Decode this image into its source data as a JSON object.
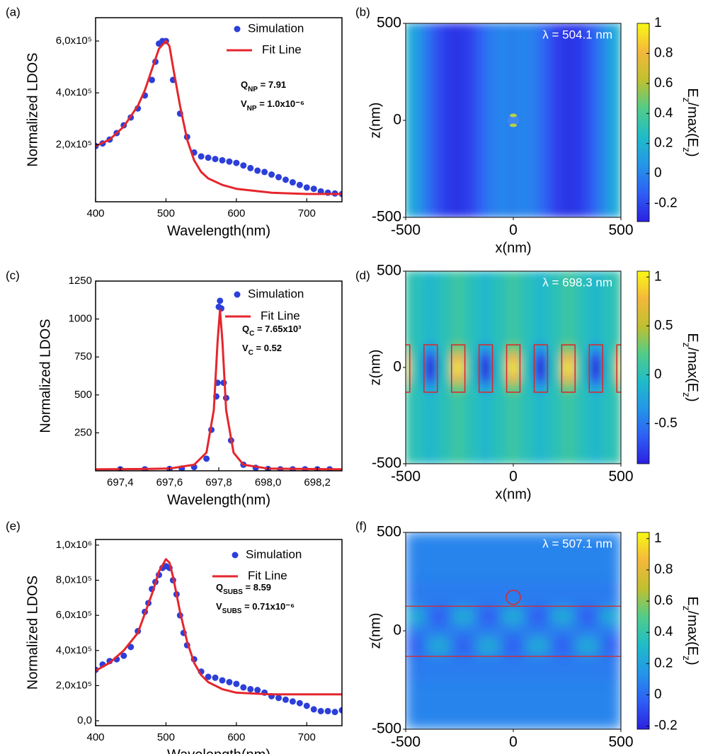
{
  "chart_data": [
    {
      "type": "scatter-line",
      "panel": "(a)",
      "x_label": "Wavelength(nm)",
      "y_label": "Normalized LDOS",
      "xlim": [
        400,
        750
      ],
      "xticks": [
        400,
        500,
        600,
        700
      ],
      "ylim": [
        -20000,
        690000
      ],
      "yticks": [
        {
          "value": 200000,
          "label": "2,0x10⁵"
        },
        {
          "value": 400000,
          "label": "4,0x10⁵"
        },
        {
          "value": 600000,
          "label": "6,0x10⁵"
        }
      ],
      "series": [
        {
          "name": "Simulation",
          "color": "#2c3fd9",
          "marker": "circle",
          "x": [
            400,
            410,
            420,
            430,
            440,
            450,
            460,
            470,
            480,
            485,
            490,
            495,
            500,
            510,
            520,
            530,
            540,
            550,
            560,
            570,
            580,
            590,
            600,
            610,
            620,
            630,
            640,
            650,
            660,
            670,
            680,
            690,
            700,
            710,
            720,
            730,
            740,
            750
          ],
          "values": [
            195000,
            205000,
            220000,
            245000,
            275000,
            305000,
            340000,
            390000,
            450000,
            520000,
            590000,
            600000,
            600000,
            450000,
            320000,
            230000,
            170000,
            155000,
            150000,
            145000,
            140000,
            135000,
            130000,
            120000,
            110000,
            100000,
            95000,
            85000,
            75000,
            65000,
            55000,
            45000,
            35000,
            30000,
            20000,
            15000,
            12000,
            10000
          ]
        },
        {
          "name": "Fit Line",
          "color": "#e5262d",
          "marker": "line",
          "x": [
            400,
            420,
            440,
            460,
            470,
            480,
            490,
            500,
            505,
            510,
            520,
            530,
            540,
            550,
            560,
            580,
            600,
            650,
            700,
            750
          ],
          "values": [
            195000,
            220000,
            270000,
            350000,
            410000,
            490000,
            570000,
            600000,
            580000,
            500000,
            350000,
            220000,
            140000,
            95000,
            70000,
            45000,
            30000,
            15000,
            10000,
            10000
          ]
        }
      ],
      "annotations": [
        [
          "Q",
          "NP",
          " = 7.91"
        ],
        [
          "V",
          "NP",
          " = 1.0x10⁻⁶"
        ]
      ]
    },
    {
      "type": "heatmap",
      "panel": "(b)",
      "x_label": "x(nm)",
      "y_label": "z(nm)",
      "xlim": [
        -500,
        500
      ],
      "xticks": [
        -500,
        0,
        500
      ],
      "ylim": [
        -500,
        500
      ],
      "yticks": [
        -500,
        0,
        500
      ],
      "x": [
        -500,
        -450,
        -400,
        -350,
        -300,
        -250,
        -200,
        -150,
        -100,
        -50,
        0,
        50,
        100,
        150,
        200,
        250,
        300,
        350,
        400,
        450,
        500
      ],
      "y": [
        0
      ],
      "values": [
        [
          0.2,
          0.1,
          -0.05,
          -0.18,
          -0.25,
          -0.26,
          -0.22,
          -0.12,
          -0.03,
          0.0,
          -0.02,
          0.0,
          -0.03,
          -0.12,
          -0.22,
          -0.26,
          -0.25,
          -0.18,
          -0.05,
          0.1,
          0.2
        ]
      ],
      "clim": [
        -0.32,
        1.0
      ],
      "cticks": [
        -0.2,
        0,
        0.2,
        0.4,
        0.6,
        0.8,
        1
      ],
      "colormap": [
        "#2b20e0",
        "#2e5ff5",
        "#2496e8",
        "#1fbcc8",
        "#52cc88",
        "#c0c030",
        "#f4b83c",
        "#f8f815"
      ],
      "colorbar_label": [
        "E",
        "z",
        "/max(E",
        "z",
        ")"
      ],
      "annotation": "λ = 504.1 nm"
    },
    {
      "type": "scatter-line",
      "panel": "(c)",
      "x_label": "Wavelength(nm)",
      "y_label": "Normalized LDOS",
      "xlim": [
        697.3,
        698.3
      ],
      "xticks": [
        {
          "value": 697.4,
          "label": "697,4"
        },
        {
          "value": 697.6,
          "label": "697,6"
        },
        {
          "value": 697.8,
          "label": "697,8"
        },
        {
          "value": 698.0,
          "label": "698,0"
        },
        {
          "value": 698.2,
          "label": "698,2"
        }
      ],
      "ylim": [
        0,
        1250
      ],
      "yticks": [
        250,
        500,
        750,
        1000,
        1250
      ],
      "series": [
        {
          "name": "Simulation",
          "color": "#2c3fd9",
          "marker": "circle",
          "x": [
            697.4,
            697.5,
            697.6,
            697.65,
            697.7,
            697.75,
            697.77,
            697.79,
            697.795,
            697.8,
            697.805,
            697.81,
            697.82,
            697.83,
            697.85,
            697.9,
            697.95,
            698.0,
            698.05,
            698.1,
            698.15,
            698.2,
            698.25
          ],
          "values": [
            10,
            10,
            12,
            15,
            25,
            80,
            270,
            490,
            580,
            1080,
            1120,
            1070,
            580,
            480,
            200,
            40,
            20,
            12,
            10,
            10,
            10,
            10,
            10
          ]
        },
        {
          "name": "Fit Line",
          "color": "#e5262d",
          "marker": "line",
          "x": [
            697.3,
            697.5,
            697.6,
            697.7,
            697.75,
            697.78,
            697.795,
            697.805,
            697.815,
            697.83,
            697.86,
            697.9,
            698.0,
            698.3
          ],
          "values": [
            10,
            12,
            15,
            40,
            120,
            400,
            850,
            1060,
            850,
            400,
            120,
            40,
            15,
            10
          ]
        }
      ],
      "annotations": [
        [
          "Q",
          "C",
          " = 7.65x10³"
        ],
        [
          "V",
          "C",
          " = 0.52"
        ]
      ]
    },
    {
      "type": "heatmap",
      "panel": "(d)",
      "x_label": "x(nm)",
      "y_label": "z(nm)",
      "xlim": [
        -500,
        500
      ],
      "xticks": [
        -500,
        0,
        500
      ],
      "ylim": [
        -500,
        500
      ],
      "yticks": [
        -500,
        0,
        500
      ],
      "x": [
        -512,
        -448,
        -384,
        -320,
        -256,
        -192,
        -128,
        -64,
        0,
        64,
        128,
        192,
        256,
        320,
        384,
        448,
        512
      ],
      "y": [
        -150,
        -100,
        -50,
        0,
        50,
        100,
        150
      ],
      "values": [
        [
          0.1,
          0,
          -0.1,
          0,
          0.1,
          0,
          -0.1,
          0,
          0.1,
          0,
          -0.1,
          0,
          0.1,
          0,
          -0.1,
          0,
          0.1
        ],
        [
          0.33,
          0,
          -0.33,
          0,
          0.33,
          0,
          -0.33,
          0,
          0.33,
          0,
          -0.33,
          0,
          0.33,
          0,
          -0.33,
          0,
          0.33
        ],
        [
          0.76,
          0,
          -0.76,
          0,
          0.76,
          0,
          -0.76,
          0,
          0.76,
          0,
          -0.76,
          0,
          0.76,
          0,
          -0.76,
          0,
          0.76
        ],
        [
          0.95,
          0,
          -0.95,
          0,
          0.95,
          0,
          -0.95,
          0,
          0.95,
          0,
          -0.95,
          0,
          0.95,
          0,
          -0.95,
          0,
          0.95
        ],
        [
          0.76,
          0,
          -0.76,
          0,
          0.76,
          0,
          -0.76,
          0,
          0.76,
          0,
          -0.76,
          0,
          0.76,
          0,
          -0.76,
          0,
          0.76
        ],
        [
          0.33,
          0,
          -0.33,
          0,
          0.33,
          0,
          -0.33,
          0,
          0.33,
          0,
          -0.33,
          0,
          0.33,
          0,
          -0.33,
          0,
          0.33
        ],
        [
          0.1,
          0,
          -0.1,
          0,
          0.1,
          0,
          -0.1,
          0,
          0.1,
          0,
          -0.1,
          0,
          0.1,
          0,
          -0.1,
          0,
          0.1
        ]
      ],
      "clim": [
        -0.91,
        1.06
      ],
      "cticks": [
        -0.5,
        0,
        0.5,
        1
      ],
      "colormap": [
        "#2b20e0",
        "#2e5ff5",
        "#2496e8",
        "#1fbcc8",
        "#52cc88",
        "#c0c030",
        "#f4b83c",
        "#f8f815"
      ],
      "colorbar_label": [
        "E",
        "z",
        "/max(E",
        "z",
        ")"
      ],
      "annotation": "λ = 698.3 nm"
    },
    {
      "type": "scatter-line",
      "panel": "(e)",
      "x_label": "Wavelength(nm)",
      "y_label": "Normalized LDOS",
      "xlim": [
        400,
        750
      ],
      "xticks": [
        400,
        500,
        600,
        700
      ],
      "ylim": [
        -28000,
        1032000
      ],
      "yticks": [
        {
          "value": 0,
          "label": "0,0"
        },
        {
          "value": 200000,
          "label": "2,0x10⁵"
        },
        {
          "value": 400000,
          "label": "4,0x10⁵"
        },
        {
          "value": 600000,
          "label": "6,0x10⁵"
        },
        {
          "value": 800000,
          "label": "8,0x10⁵"
        },
        {
          "value": 1000000,
          "label": "1,0x10⁶"
        }
      ],
      "series": [
        {
          "name": "Simulation",
          "color": "#2c3fd9",
          "marker": "circle",
          "x": [
            400,
            410,
            420,
            430,
            440,
            450,
            460,
            470,
            475,
            480,
            485,
            490,
            495,
            500,
            505,
            510,
            515,
            520,
            525,
            530,
            540,
            550,
            560,
            570,
            580,
            590,
            600,
            610,
            620,
            630,
            640,
            650,
            660,
            670,
            680,
            690,
            700,
            710,
            720,
            730,
            740,
            750
          ],
          "values": [
            290000,
            320000,
            340000,
            350000,
            370000,
            420000,
            510000,
            620000,
            670000,
            750000,
            790000,
            830000,
            870000,
            880000,
            870000,
            800000,
            720000,
            600000,
            500000,
            430000,
            350000,
            280000,
            250000,
            245000,
            230000,
            220000,
            210000,
            190000,
            180000,
            175000,
            160000,
            140000,
            130000,
            120000,
            110000,
            100000,
            85000,
            65000,
            55000,
            55000,
            50000,
            60000
          ]
        },
        {
          "name": "Fit Line",
          "color": "#e5262d",
          "marker": "line",
          "x": [
            400,
            420,
            440,
            460,
            480,
            490,
            500,
            505,
            510,
            520,
            530,
            540,
            550,
            560,
            580,
            600,
            650,
            700,
            750
          ],
          "values": [
            285000,
            330000,
            400000,
            500000,
            720000,
            850000,
            920000,
            900000,
            820000,
            620000,
            450000,
            330000,
            260000,
            220000,
            180000,
            160000,
            150000,
            150000,
            150000
          ]
        }
      ],
      "annotations": [
        [
          "Q",
          "SUBS",
          " = 8.59"
        ],
        [
          "V",
          "SUBS",
          " = 0.71x10⁻⁶"
        ]
      ]
    },
    {
      "type": "heatmap",
      "panel": "(f)",
      "y_label": "z(nm)",
      "xlim": [
        -500,
        500
      ],
      "xticks": [
        -500,
        0,
        500
      ],
      "ylim": [
        -500,
        500
      ],
      "yticks": [
        -500,
        0,
        500
      ],
      "x": [
        -460,
        -345,
        -230,
        -115,
        0,
        115,
        230,
        345,
        460
      ],
      "y": [
        -350,
        -160,
        -70,
        0,
        70,
        160,
        350
      ],
      "values": [
        [
          0.08,
          0.08,
          0.08,
          0.08,
          0.08,
          0.08,
          0.08,
          0.08,
          0.08
        ],
        [
          0.05,
          0.05,
          0.05,
          0.05,
          0.05,
          0.05,
          0.05,
          0.05,
          0.05
        ],
        [
          -0.05,
          0.25,
          -0.05,
          0.25,
          -0.05,
          0.25,
          -0.05,
          0.25,
          -0.05
        ],
        [
          0.05,
          0.05,
          0.05,
          0.05,
          0.05,
          0.05,
          0.05,
          0.05,
          0.05
        ],
        [
          0.25,
          -0.05,
          0.25,
          -0.05,
          0.25,
          -0.05,
          0.25,
          -0.05,
          0.25
        ],
        [
          0.05,
          0.05,
          0.05,
          0.05,
          0.05,
          0.05,
          0.05,
          0.05,
          0.05
        ],
        [
          0.08,
          0.08,
          0.08,
          0.08,
          0.08,
          0.08,
          0.08,
          0.08,
          0.08
        ]
      ],
      "clim": [
        -0.22,
        1.04
      ],
      "cticks": [
        -0.2,
        0,
        0.2,
        0.4,
        0.6,
        0.8,
        1
      ],
      "colormap": [
        "#2b20e0",
        "#2e5ff5",
        "#2496e8",
        "#1fbcc8",
        "#52cc88",
        "#c0c030",
        "#f4b83c",
        "#f8f815"
      ],
      "colorbar_label": [
        "E",
        "z",
        "/max(E",
        "z",
        ")"
      ],
      "annotation": "λ = 507.1 nm"
    }
  ]
}
